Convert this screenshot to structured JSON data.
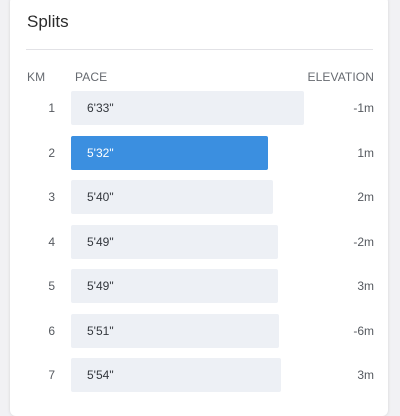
{
  "title": "Splits",
  "columns": {
    "km": "KM",
    "pace": "PACE",
    "elevation": "ELEVATION"
  },
  "colors": {
    "bar": "#edf0f5",
    "bar_selected": "#3b8fe0"
  },
  "splits": [
    {
      "km": "1",
      "pace": "6'33\"",
      "elevation": "-1m",
      "selected": false
    },
    {
      "km": "2",
      "pace": "5'32\"",
      "elevation": "1m",
      "selected": true
    },
    {
      "km": "3",
      "pace": "5'40\"",
      "elevation": "2m",
      "selected": false
    },
    {
      "km": "4",
      "pace": "5'49\"",
      "elevation": "-2m",
      "selected": false
    },
    {
      "km": "5",
      "pace": "5'49\"",
      "elevation": "3m",
      "selected": false
    },
    {
      "km": "6",
      "pace": "5'51\"",
      "elevation": "-6m",
      "selected": false
    },
    {
      "km": "7",
      "pace": "5'54\"",
      "elevation": "3m",
      "selected": false
    }
  ]
}
